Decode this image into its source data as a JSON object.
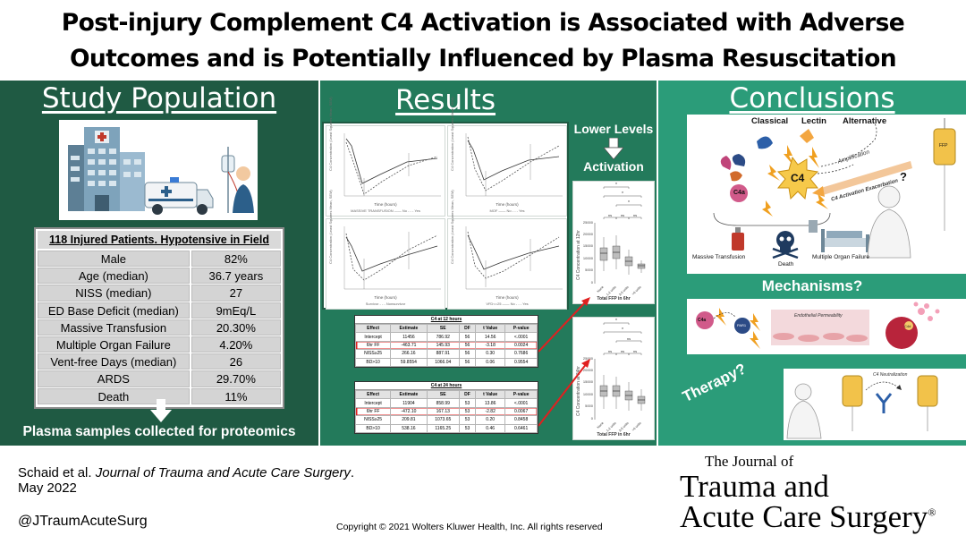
{
  "title": {
    "line1": "Post-injury Complement C4 Activation is Associated with Adverse",
    "line2": "Outcomes and is Potentially Influenced by Plasma Resuscitation"
  },
  "study": {
    "heading": "Study Population",
    "table_title": "118 Injured Patients. Hypotensive in Field",
    "rows": [
      {
        "label": "Male",
        "value": "82%"
      },
      {
        "label": "Age (median)",
        "value": "36.7 years"
      },
      {
        "label": "NISS (median)",
        "value": "27"
      },
      {
        "label": "ED Base Deficit (median)",
        "value": "9mEq/L"
      },
      {
        "label": "Massive Transfusion",
        "value": "20.30%"
      },
      {
        "label": "Multiple Organ Failure",
        "value": "4.20%"
      },
      {
        "label": "Vent-free Days (median)",
        "value": "26"
      },
      {
        "label": "ARDS",
        "value": "29.70%"
      },
      {
        "label": "Death",
        "value": "11%"
      }
    ],
    "footer": "Plasma samples collected for proteomics",
    "icons": [
      "hospital-icon",
      "ambulance-icon",
      "patient-iv-icon",
      "down-arrow-icon"
    ]
  },
  "results": {
    "heading": "Results",
    "callout_top": "Lower Levels",
    "callout_bottom": "Activation",
    "line_plots": [
      {
        "xlabel": "Time (hours)",
        "legend": "MASSIVE TRANSFUSION  —— No  - - - Yes"
      },
      {
        "xlabel": "Time (hours)",
        "legend": "MOF  —— No  - - - Yes"
      },
      {
        "xlabel": "Time (hours)",
        "legend": "Survivor  - - - Nonsurvivor"
      },
      {
        "xlabel": "Time (hours)",
        "legend": "VFD<=25  —— No  - - - Yes"
      }
    ],
    "line_plot_ylabel": "C4 Concentration (Least Squares Mean, SEM)",
    "box_plots": [
      {
        "ylabel": "C4 Concentration at 12hr",
        "xlabel": "Total FFP in 6hr",
        "categories": [
          "None",
          "1-2 units",
          "3-5 units",
          ">6 units"
        ],
        "significance": [
          "ns",
          "ns",
          "ns",
          "*",
          "*",
          "*"
        ]
      },
      {
        "ylabel": "C4 Concentration at 24hr",
        "xlabel": "Total FFP in 6hr",
        "categories": [
          "None",
          "1-2 units",
          "3-5 units",
          ">6 units"
        ],
        "significance": [
          "ns",
          "ns",
          "ns",
          "ns",
          "*",
          "*"
        ]
      }
    ],
    "box_plot_yticks": [
      "0",
      "5000",
      "10000",
      "15000",
      "20000",
      "25000"
    ],
    "tables": [
      {
        "caption": "C4 at 12 hours",
        "headers": [
          "Effect",
          "Estimate",
          "SE",
          "DF",
          "t Value",
          "P-value"
        ],
        "rows": [
          [
            "Intercept",
            "11456",
            "786.92",
            "56",
            "14.56",
            "<.0001"
          ],
          [
            "6hr FF",
            "-463.71",
            "145.93",
            "56",
            "-3.18",
            "0.0024"
          ],
          [
            "NISS≥25",
            "266.16",
            "887.91",
            "56",
            "0.30",
            "0.7686"
          ],
          [
            "BD>10",
            "59.8554",
            "1066.04",
            "56",
            "0.06",
            "0.9554"
          ]
        ],
        "highlight_row": 1
      },
      {
        "caption": "C4 at 24 hours",
        "headers": [
          "Effect",
          "Estimate",
          "SE",
          "DF",
          "t Value",
          "P-value"
        ],
        "rows": [
          [
            "Intercept",
            "11904",
            "858.99",
            "53",
            "13.86",
            "<.0001"
          ],
          [
            "6hr FF",
            "-472.10",
            "167.13",
            "53",
            "-2.82",
            "0.0067"
          ],
          [
            "NISS≥25",
            "209.81",
            "1073.65",
            "53",
            "0.20",
            "0.8458"
          ],
          [
            "BD>10",
            "538.16",
            "1165.25",
            "53",
            "0.46",
            "0.6461"
          ]
        ],
        "highlight_row": 1
      }
    ]
  },
  "conclusions": {
    "heading": "Conclusions",
    "pathways": [
      "Classical",
      "Lectin",
      "Alternative"
    ],
    "center": "C4",
    "c4a": "C4a",
    "amplification": "Amplification",
    "exacerbation": "C4 Activation Exacerbation",
    "question": "?",
    "outcomes": [
      "Massive Transfusion",
      "Death",
      "Multiple Organ Failure"
    ],
    "ffp_label": "FFP",
    "mechanisms": "Mechanisms?",
    "mech_labels": {
      "c4a": "C4a",
      "receptor": "PAR1",
      "effect": "Endothelial Permeability",
      "cell": "C4d"
    },
    "therapy": "Therapy?",
    "therapy_label": "C4 Neutralization"
  },
  "footer": {
    "citation_authors": "Schaid et al.",
    "citation_journal": "Journal of Trauma and Acute Care Surgery",
    "citation_period": ".",
    "citation_date": "May 2022",
    "twitter": "@JTraumAcuteSurg",
    "copyright": "Copyright © 2021  Wolters Kluwer Health, Inc. All rights reserved",
    "logo_line1": "The Journal of",
    "logo_line2": "Trauma and",
    "logo_line3": "Acute Care Surgery",
    "logo_reg": "®"
  },
  "colors": {
    "study_panel": "#1f5a43",
    "results_panel": "#237a5b",
    "conclusions_panel": "#2b9c79",
    "highlight_red": "#e02020"
  }
}
